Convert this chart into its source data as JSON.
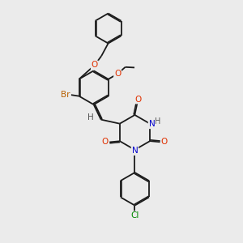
{
  "background_color": "#ebebeb",
  "figsize": [
    3.0,
    3.0
  ],
  "dpi": 100,
  "bond_color": "#1a1a1a",
  "atom_colors": {
    "O": "#e03000",
    "N": "#0000cc",
    "Br": "#b86000",
    "Cl": "#008800",
    "H": "#555555",
    "C": "#1a1a1a"
  },
  "bond_lw": 1.3,
  "dbo": 0.055,
  "xlim": [
    0,
    10
  ],
  "ylim": [
    0,
    10
  ]
}
